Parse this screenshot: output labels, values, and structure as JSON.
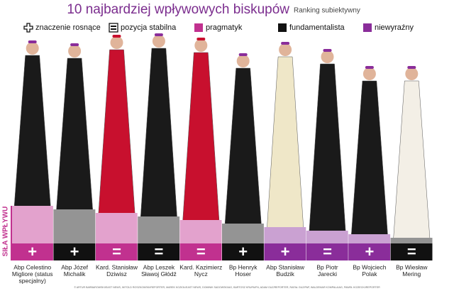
{
  "header": {
    "title": "10 najbardziej wpływowych biskupów",
    "subtitle": "Ranking subiektywny"
  },
  "legend": [
    {
      "label": "znaczenie rosnące",
      "icon": "plus"
    },
    {
      "label": "pozycja stabilna",
      "icon": "equals"
    },
    {
      "label": "pragmatyk",
      "color": "#c1318f"
    },
    {
      "label": "fundamentalista",
      "color": "#111111"
    },
    {
      "label": "niewyraźny",
      "color": "#8a2d9a"
    }
  ],
  "axis_label": "SIŁA WPŁYWU",
  "people": [
    {
      "name": [
        "Abp Celestino",
        "Migliore (status",
        "specjalny)"
      ],
      "group": 2,
      "trend": "+"
    },
    {
      "name": [
        "Abp Józef",
        "Michalik"
      ],
      "group": 3,
      "trend": "+"
    },
    {
      "name": [
        "Kard. Stanisław",
        "Dziwisz"
      ],
      "group": 2,
      "trend": "="
    },
    {
      "name": [
        "Abp Leszek",
        "Sławoj Głódź"
      ],
      "group": 3,
      "trend": "="
    },
    {
      "name": [
        "Kard. Kazimierz",
        "Nycz"
      ],
      "group": 2,
      "trend": "="
    },
    {
      "name": [
        "Bp Henryk",
        "Hoser"
      ],
      "group": 3,
      "trend": "+"
    },
    {
      "name": [
        "Abp Stanisław",
        "Budzik"
      ],
      "group": 4,
      "trend": "+"
    },
    {
      "name": [
        "Bp Piotr",
        "Jarecki"
      ],
      "group": 4,
      "trend": "="
    },
    {
      "name": [
        "Bp Wojciech",
        "Polak"
      ],
      "group": 4,
      "trend": "+"
    },
    {
      "name": [
        "Bp Wiesław",
        "Mering"
      ],
      "group": 3,
      "trend": "="
    }
  ],
  "credits": "© ARTUR BARBAROWSKI/EAST NEWS, WITOLD ROSZKOWSKI/REPORTER, MAREK KOZIOŁ/EAST NEWS, DOMINIK SADOWSKI/AG, BARTOSZ KRUPA/FN, ADAM GUZ/REPORTER, RAFAŁ GUZ/PAP, WALDEMAR KOMPALA/AG, PAWEŁ KOZIECKI/REPORTER"
}
